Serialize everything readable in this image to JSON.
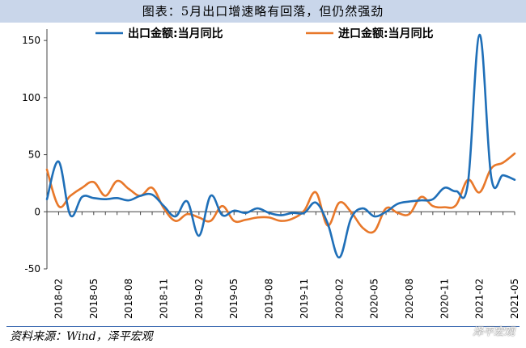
{
  "title": "图表：5月出口增速略有回落，但仍然强劲",
  "source": "资料来源：Wind，泽平宏观",
  "watermark": "泽平宏观",
  "chart_data": {
    "type": "line",
    "title": "图表：5月出口增速略有回落，但仍然强劲",
    "xlabel": "",
    "ylabel": "",
    "ylim": [
      -50,
      160
    ],
    "yticks": [
      -50,
      0,
      50,
      100,
      150
    ],
    "grid": false,
    "legend": "top",
    "x": [
      "2018-01",
      "2018-02",
      "2018-03",
      "2018-04",
      "2018-05",
      "2018-06",
      "2018-07",
      "2018-08",
      "2018-09",
      "2018-10",
      "2018-11",
      "2018-12",
      "2019-01",
      "2019-02",
      "2019-03",
      "2019-04",
      "2019-05",
      "2019-06",
      "2019-07",
      "2019-08",
      "2019-09",
      "2019-10",
      "2019-11",
      "2019-12",
      "2020-01",
      "2020-02",
      "2020-03",
      "2020-04",
      "2020-05",
      "2020-06",
      "2020-07",
      "2020-08",
      "2020-09",
      "2020-10",
      "2020-11",
      "2020-12",
      "2021-01",
      "2021-02",
      "2021-03",
      "2021-04",
      "2021-05"
    ],
    "xtick_labels": [
      "2018-02",
      "2018-05",
      "2018-08",
      "2018-11",
      "2019-02",
      "2019-05",
      "2019-08",
      "2019-11",
      "2020-02",
      "2020-05",
      "2020-08",
      "2020-11",
      "2021-02",
      "2021-05"
    ],
    "series": [
      {
        "name": "出口金额:当月同比",
        "color": "#1f6fb8",
        "values": [
          11,
          44,
          -3,
          13,
          12,
          11,
          12,
          10,
          14,
          15,
          5,
          -4,
          9,
          -21,
          14,
          -3,
          1,
          -1,
          3,
          -1,
          -3,
          -1,
          -1,
          8,
          -10,
          -40,
          -6,
          3,
          -4,
          0,
          7,
          9,
          10,
          11,
          21,
          18,
          25,
          155,
          30,
          32,
          28
        ]
      },
      {
        "name": "进口金额:当月同比",
        "color": "#e8782a",
        "values": [
          37,
          5,
          14,
          21,
          26,
          14,
          27,
          20,
          14,
          21,
          3,
          -8,
          -2,
          -5,
          -8,
          5,
          -8,
          -7,
          -5,
          -5,
          -8,
          -6,
          1,
          17,
          -12,
          8,
          0,
          -14,
          -17,
          3,
          -1,
          -2,
          13,
          5,
          4,
          6,
          28,
          17,
          38,
          43,
          51
        ]
      }
    ]
  }
}
